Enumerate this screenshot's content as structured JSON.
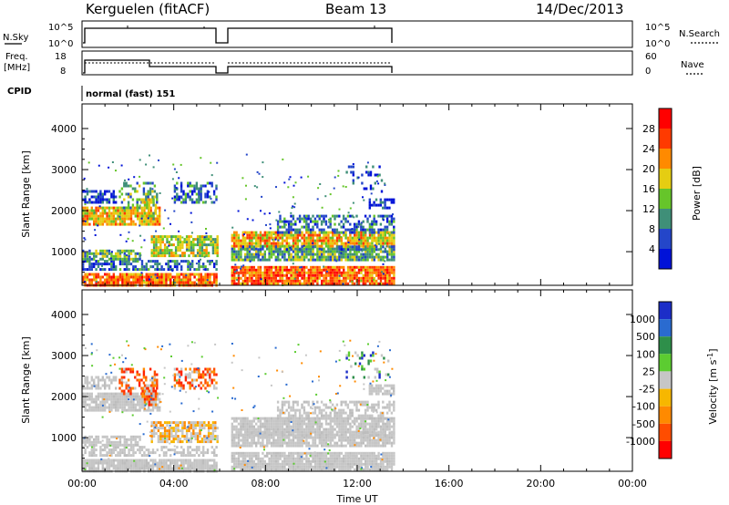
{
  "header": {
    "station": "Kerguelen (fitACF)",
    "beam": "Beam 13",
    "date": "14/Dec/2013"
  },
  "panels": {
    "nsky_label": "N.Sky",
    "nsky_ticks": [
      "10^5",
      "10^0"
    ],
    "nsearch_label": "N.Search",
    "nsearch_ticks": [
      "10^5",
      "10^0"
    ],
    "freq_label": "Freq.",
    "freq_unit": "[MHz]",
    "freq_ticks": [
      "18",
      "8"
    ],
    "nave_label": "Nave",
    "nave_ticks": [
      "60",
      "0"
    ],
    "cpid_label": "CPID",
    "cpid_value": "normal (fast) 151"
  },
  "chart_data": [
    {
      "type": "heatmap",
      "quantity": "power",
      "ylabel": "Slant Range [km]",
      "xlabel": "Time UT",
      "x_ticks": [
        "00:00",
        "04:00",
        "08:00",
        "12:00",
        "16:00",
        "20:00",
        "00:00"
      ],
      "xlim_hours": [
        0,
        24
      ],
      "y_ticks": [
        1000,
        2000,
        3000,
        4000
      ],
      "ylim": [
        180,
        4600
      ],
      "data_gap_hours": [
        5.9,
        6.5
      ],
      "data_end_hours": 13.6,
      "colorbar": {
        "label": "Power [dB]",
        "ticks": [
          "4",
          "8",
          "12",
          "16",
          "20",
          "24",
          "28"
        ],
        "colors": [
          "#0012d8",
          "#2446c9",
          "#3f8f78",
          "#66c52a",
          "#e5cd12",
          "#ff8a00",
          "#ff3a00",
          "#ff0000"
        ]
      }
    },
    {
      "type": "heatmap",
      "quantity": "velocity",
      "ylabel": "Slant Range [km]",
      "xlabel": "Time UT",
      "x_ticks": [
        "00:00",
        "04:00",
        "08:00",
        "12:00",
        "16:00",
        "20:00",
        "00:00"
      ],
      "xlim_hours": [
        0,
        24
      ],
      "y_ticks": [
        1000,
        2000,
        3000,
        4000
      ],
      "ylim": [
        180,
        4600
      ],
      "data_gap_hours": [
        5.9,
        6.5
      ],
      "data_end_hours": 13.6,
      "colorbar": {
        "label": "Velocity [m s",
        "label_sup": "-1",
        "label_end": "]",
        "ticks": [
          "1000",
          "500",
          "100",
          "25",
          "-25",
          "-100",
          "-500",
          "-1000"
        ],
        "colors": [
          "#1c2ec8",
          "#2a6bd0",
          "#2e8f4a",
          "#5ccc31",
          "#c6c6c6",
          "#f7b700",
          "#ff8a00",
          "#ff4d00",
          "#ff0000"
        ]
      }
    }
  ],
  "palette": {
    "ground_scatter": "#c6c6c6",
    "trace": "#000000"
  }
}
